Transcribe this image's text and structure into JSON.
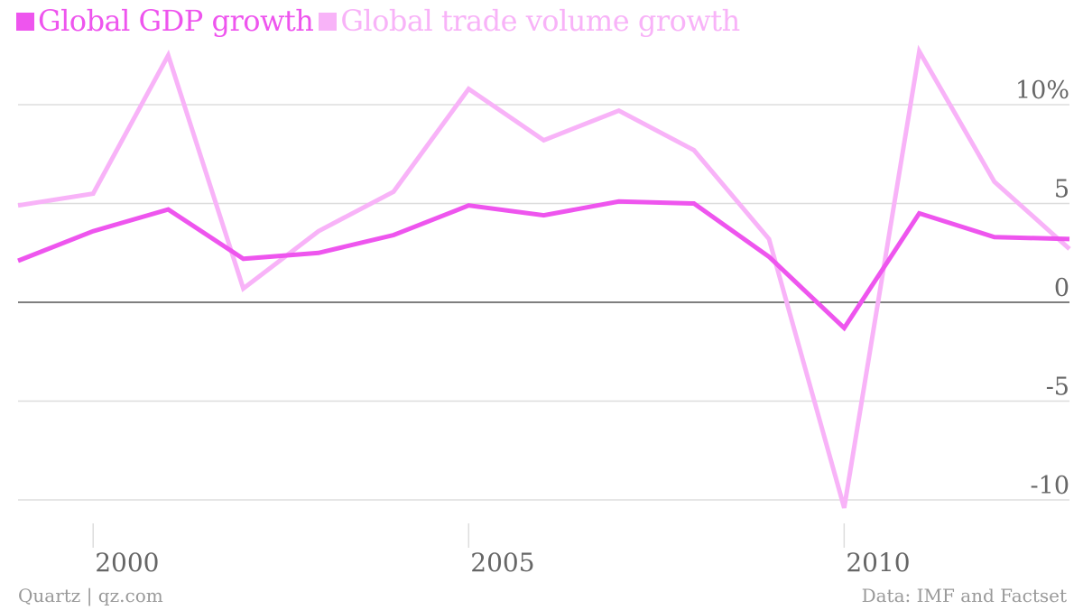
{
  "colors": {
    "gdp": "#ee55ee",
    "trade": "#f8b3f8",
    "grid": "#dddddd",
    "zero_line": "#555555",
    "tick_text": "#666666",
    "footer_text": "#999999"
  },
  "footer": {
    "source_left": "Quartz | qz.com",
    "source_right": "Data: IMF and Factset"
  },
  "chart_data": {
    "type": "line",
    "title": "",
    "xlabel": "",
    "ylabel": "",
    "x": [
      1999,
      2000,
      2001,
      2002,
      2003,
      2004,
      2005,
      2006,
      2007,
      2008,
      2009,
      2010,
      2011,
      2012,
      2013
    ],
    "series": [
      {
        "name": "Global GDP growth",
        "color": "#ee55ee",
        "values": [
          2.1,
          3.6,
          4.7,
          2.2,
          2.5,
          3.4,
          4.9,
          4.4,
          5.1,
          5.0,
          2.3,
          -1.3,
          4.5,
          3.3,
          3.2
        ]
      },
      {
        "name": "Global trade volume growth",
        "color": "#f8b3f8",
        "values": [
          4.9,
          5.5,
          12.5,
          0.7,
          3.6,
          5.6,
          10.8,
          8.2,
          9.7,
          7.7,
          3.2,
          -10.4,
          12.7,
          6.1,
          2.7
        ]
      }
    ],
    "xlim": [
      1999,
      2013
    ],
    "ylim": [
      -11,
      13
    ],
    "x_ticks": [
      2000,
      2005,
      2010
    ],
    "x_tick_labels": [
      "2000",
      "2005",
      "2010"
    ],
    "y_ticks": [
      10,
      5,
      0,
      -5,
      -10
    ],
    "y_tick_labels": [
      "10%",
      "5",
      "0",
      "-5",
      "-10"
    ],
    "grid": true,
    "legend_position": "top-left"
  }
}
